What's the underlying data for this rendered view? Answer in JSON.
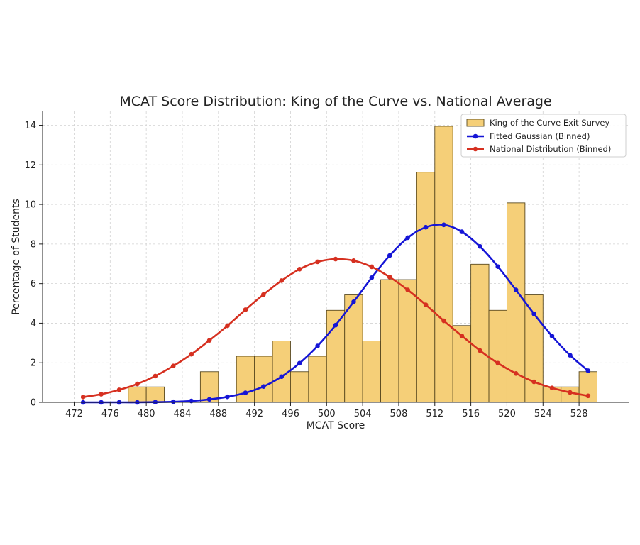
{
  "chart_data": {
    "type": "bar",
    "title": "MCAT Score Distribution: King of the Curve vs. National Average",
    "xlabel": "MCAT Score",
    "ylabel": "Percentage of Students",
    "xlim": [
      468.5,
      533.5
    ],
    "ylim": [
      0,
      14.7
    ],
    "xticks": [
      472,
      476,
      480,
      484,
      488,
      492,
      496,
      500,
      504,
      508,
      512,
      516,
      520,
      524,
      528
    ],
    "yticks": [
      0,
      2,
      4,
      6,
      8,
      10,
      12,
      14
    ],
    "grid": true,
    "legend_position": "top-right",
    "bin_width": 2,
    "histogram": {
      "name": "King of the Curve Exit Survey",
      "color": "#F5CF78",
      "edge_color": "#5a4a20",
      "bin_starts": [
        478,
        480,
        486,
        490,
        492,
        494,
        496,
        498,
        500,
        502,
        504,
        506,
        508,
        510,
        512,
        514,
        516,
        518,
        520,
        522,
        524,
        526,
        528
      ],
      "values": [
        0.78,
        0.78,
        1.55,
        2.33,
        2.33,
        3.1,
        1.55,
        2.33,
        4.65,
        5.43,
        3.1,
        6.2,
        6.2,
        11.63,
        13.95,
        3.88,
        6.98,
        4.65,
        10.08,
        5.43,
        0.78,
        0.78,
        1.55
      ]
    },
    "series": [
      {
        "name": "Fitted Gaussian (Binned)",
        "color": "#1515d6",
        "x": [
          473,
          475,
          477,
          479,
          481,
          483,
          485,
          487,
          489,
          491,
          493,
          495,
          497,
          499,
          501,
          503,
          505,
          507,
          509,
          511,
          513,
          515,
          517,
          519,
          521,
          523,
          525,
          527,
          529
        ],
        "values": [
          0.0,
          0.0,
          0.0,
          0.0,
          0.01,
          0.03,
          0.07,
          0.15,
          0.28,
          0.48,
          0.8,
          1.3,
          1.98,
          2.85,
          3.9,
          5.08,
          6.3,
          7.42,
          8.32,
          8.85,
          8.97,
          8.62,
          7.88,
          6.86,
          5.68,
          4.47,
          3.35,
          2.38,
          1.6
        ]
      },
      {
        "name": "National Distribution (Binned)",
        "color": "#d63020",
        "x": [
          473,
          475,
          477,
          479,
          481,
          483,
          485,
          487,
          489,
          491,
          493,
          495,
          497,
          499,
          501,
          503,
          505,
          507,
          509,
          511,
          513,
          515,
          517,
          519,
          521,
          523,
          525,
          527,
          529
        ],
        "values": [
          0.27,
          0.41,
          0.63,
          0.93,
          1.33,
          1.84,
          2.43,
          3.13,
          3.87,
          4.68,
          5.45,
          6.15,
          6.73,
          7.1,
          7.24,
          7.16,
          6.85,
          6.33,
          5.68,
          4.93,
          4.12,
          3.36,
          2.62,
          1.98,
          1.46,
          1.04,
          0.73,
          0.5,
          0.33
        ]
      }
    ]
  }
}
